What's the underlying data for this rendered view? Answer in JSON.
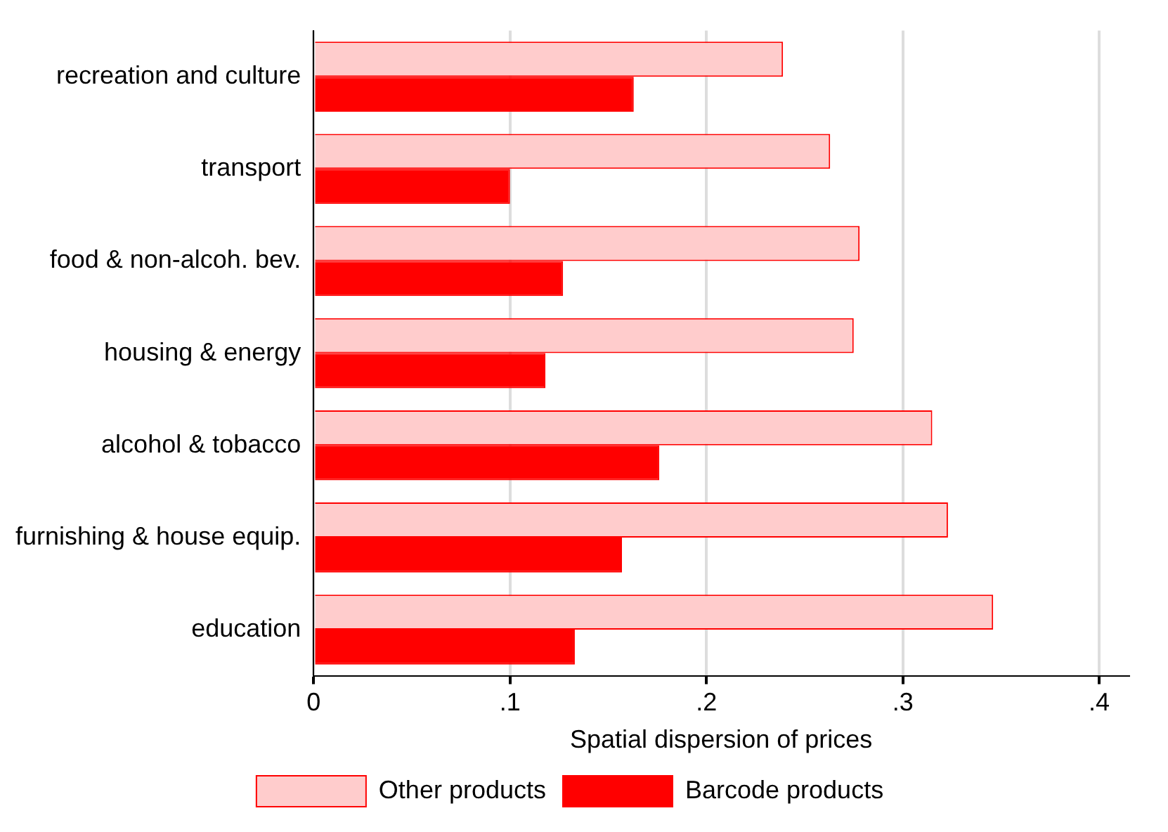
{
  "chart_data": {
    "type": "bar",
    "orientation": "horizontal",
    "xlabel": "Spatial dispersion of prices",
    "categories": [
      "recreation and culture",
      "transport",
      "food & non-alcoh. bev.",
      "housing & energy",
      "alcohol & tobacco",
      "furnishing & house equip.",
      "education"
    ],
    "series": [
      {
        "name": "Other products",
        "color": "#ffcccc",
        "values": [
          0.239,
          0.263,
          0.278,
          0.275,
          0.315,
          0.323,
          0.346
        ]
      },
      {
        "name": "Barcode products",
        "color": "#ff0000",
        "values": [
          0.163,
          0.1,
          0.127,
          0.118,
          0.176,
          0.157,
          0.133
        ]
      }
    ],
    "xlim": [
      0,
      0.415
    ],
    "xticks": [
      0,
      {
        "value": 0.1,
        "label": ".1"
      },
      {
        "value": 0.2,
        "label": ".2"
      },
      {
        "value": 0.3,
        "label": ".3"
      },
      {
        "value": 0.4,
        "label": ".4"
      }
    ],
    "grid": "x",
    "legend": "bottom"
  }
}
